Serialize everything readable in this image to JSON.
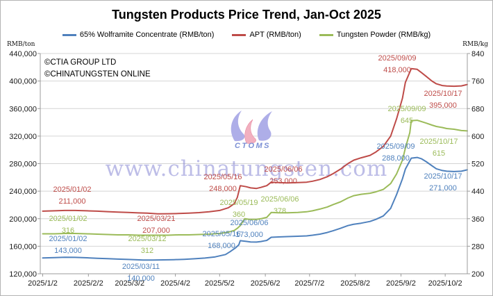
{
  "branding": {
    "copyright_line1": "©CTIA GROUP LTD",
    "copyright_line2": "©CHINATUNGSTEN ONLINE",
    "watermark_text": "www.chinatungsten.com",
    "logo_caption": "CTOMS",
    "watermark_color": "#7d7dd0",
    "logo_lavender": "#aeaee8",
    "logo_pink": "#f2b0c0"
  },
  "legend": [
    {
      "label": "65% Wolframite Concentrate (RMB/ton)",
      "color": "#4F81BD"
    },
    {
      "label": "APT (RMB/ton)",
      "color": "#BE4B48"
    },
    {
      "label": "Tungsten Powder (RMB/kg)",
      "color": "#9BBB59"
    }
  ],
  "chart_data": {
    "type": "line",
    "title": "Tungsten Products Price Trend, Jan-Oct 2025",
    "grid": true,
    "legend_position": "top",
    "x_axis": {
      "year": 2025,
      "start": "1/2",
      "end": "10/17",
      "tick_labels": [
        "2025/1/2",
        "2025/2/2",
        "2025/3/2",
        "2025/4/2",
        "2025/5/2",
        "2025/6/2",
        "2025/7/2",
        "2025/8/2",
        "2025/9/2",
        "2025/10/2"
      ]
    },
    "y_left": {
      "label": "RMB/ton",
      "min": 120000,
      "max": 440000,
      "step": 40000,
      "tick_labels": [
        "440,000",
        "400,000",
        "360,000",
        "320,000",
        "280,000",
        "240,000",
        "200,000",
        "160,000",
        "120,000"
      ]
    },
    "y_right": {
      "label": "RMB/kg",
      "min": 200,
      "max": 840,
      "step": 80,
      "tick_labels": [
        "840",
        "760",
        "680",
        "600",
        "520",
        "440",
        "360",
        "280",
        "200"
      ]
    },
    "series": [
      {
        "name": "65% Wolframite Concentrate (RMB/ton)",
        "color": "#4F81BD",
        "axis": "left",
        "points": [
          [
            "1/2",
            143000
          ],
          [
            "1/10",
            143500
          ],
          [
            "1/17",
            144000
          ],
          [
            "1/24",
            143800
          ],
          [
            "2/1",
            143200
          ],
          [
            "2/8",
            142500
          ],
          [
            "2/15",
            142000
          ],
          [
            "2/22",
            141300
          ],
          [
            "3/1",
            140800
          ],
          [
            "3/7",
            140300
          ],
          [
            "3/11",
            140000
          ],
          [
            "3/18",
            140000
          ],
          [
            "3/25",
            140200
          ],
          [
            "4/1",
            140500
          ],
          [
            "4/8",
            141000
          ],
          [
            "4/15",
            141800
          ],
          [
            "4/22",
            142800
          ],
          [
            "4/29",
            144500
          ],
          [
            "5/6",
            148000
          ],
          [
            "5/9",
            152000
          ],
          [
            "5/13",
            158000
          ],
          [
            "5/15",
            162000
          ],
          [
            "5/16",
            168000
          ],
          [
            "5/20",
            167000
          ],
          [
            "5/23",
            166200
          ],
          [
            "5/27",
            166000
          ],
          [
            "5/30",
            166800
          ],
          [
            "6/3",
            168500
          ],
          [
            "6/6",
            173000
          ],
          [
            "6/11",
            173500
          ],
          [
            "6/17",
            174000
          ],
          [
            "6/24",
            174500
          ],
          [
            "6/30",
            175000
          ],
          [
            "7/4",
            176000
          ],
          [
            "7/9",
            177500
          ],
          [
            "7/14",
            180000
          ],
          [
            "7/18",
            182500
          ],
          [
            "7/23",
            186000
          ],
          [
            "7/28",
            190000
          ],
          [
            "8/1",
            192000
          ],
          [
            "8/6",
            193500
          ],
          [
            "8/12",
            196000
          ],
          [
            "8/16",
            199000
          ],
          [
            "8/21",
            204000
          ],
          [
            "8/26",
            215000
          ],
          [
            "8/30",
            235000
          ],
          [
            "9/3",
            258000
          ],
          [
            "9/5",
            272000
          ],
          [
            "9/9",
            288000
          ],
          [
            "9/13",
            289000
          ],
          [
            "9/16",
            287000
          ],
          [
            "9/19",
            283000
          ],
          [
            "9/23",
            277000
          ],
          [
            "9/26",
            272500
          ],
          [
            "9/30",
            270000
          ],
          [
            "10/3",
            269000
          ],
          [
            "10/8",
            268500
          ],
          [
            "10/13",
            269000
          ],
          [
            "10/17",
            271000
          ]
        ]
      },
      {
        "name": "APT (RMB/ton)",
        "color": "#BE4B48",
        "axis": "left",
        "points": [
          [
            "1/2",
            211000
          ],
          [
            "1/10",
            211500
          ],
          [
            "1/17",
            212000
          ],
          [
            "1/24",
            212000
          ],
          [
            "2/1",
            211500
          ],
          [
            "2/8",
            211000
          ],
          [
            "2/15",
            210200
          ],
          [
            "2/22",
            209600
          ],
          [
            "3/1",
            209000
          ],
          [
            "3/8",
            208400
          ],
          [
            "3/14",
            208000
          ],
          [
            "3/21",
            207000
          ],
          [
            "3/28",
            207200
          ],
          [
            "4/4",
            207500
          ],
          [
            "4/11",
            208000
          ],
          [
            "4/18",
            208800
          ],
          [
            "4/25",
            210000
          ],
          [
            "5/2",
            212000
          ],
          [
            "5/8",
            216000
          ],
          [
            "5/12",
            222000
          ],
          [
            "5/14",
            231000
          ],
          [
            "5/16",
            248000
          ],
          [
            "5/20",
            246500
          ],
          [
            "5/23",
            244800
          ],
          [
            "5/27",
            244000
          ],
          [
            "5/30",
            245500
          ],
          [
            "6/3",
            248000
          ],
          [
            "6/6",
            253000
          ],
          [
            "6/11",
            252500
          ],
          [
            "6/17",
            252000
          ],
          [
            "6/24",
            252500
          ],
          [
            "6/30",
            253000
          ],
          [
            "7/4",
            254500
          ],
          [
            "7/9",
            257000
          ],
          [
            "7/14",
            261000
          ],
          [
            "7/18",
            265500
          ],
          [
            "7/23",
            272000
          ],
          [
            "7/28",
            280000
          ],
          [
            "8/1",
            285000
          ],
          [
            "8/6",
            288500
          ],
          [
            "8/12",
            292000
          ],
          [
            "8/16",
            297000
          ],
          [
            "8/21",
            305000
          ],
          [
            "8/26",
            320000
          ],
          [
            "8/30",
            345000
          ],
          [
            "9/3",
            375000
          ],
          [
            "9/5",
            398000
          ],
          [
            "9/9",
            418000
          ],
          [
            "9/13",
            417000
          ],
          [
            "9/16",
            412000
          ],
          [
            "9/19",
            407000
          ],
          [
            "9/23",
            400000
          ],
          [
            "9/26",
            396000
          ],
          [
            "9/30",
            393500
          ],
          [
            "10/3",
            392800
          ],
          [
            "10/8",
            392500
          ],
          [
            "10/13",
            393000
          ],
          [
            "10/17",
            395000
          ]
        ]
      },
      {
        "name": "Tungsten Powder (RMB/kg)",
        "color": "#9BBB59",
        "axis": "right",
        "points": [
          [
            "1/2",
            316
          ],
          [
            "1/10",
            316
          ],
          [
            "1/17",
            317
          ],
          [
            "1/24",
            317
          ],
          [
            "2/1",
            316
          ],
          [
            "2/8",
            315
          ],
          [
            "2/15",
            314
          ],
          [
            "2/22",
            313
          ],
          [
            "3/1",
            313
          ],
          [
            "3/8",
            312
          ],
          [
            "3/12",
            312
          ],
          [
            "3/21",
            312
          ],
          [
            "3/28",
            312
          ],
          [
            "4/4",
            313
          ],
          [
            "4/11",
            313
          ],
          [
            "4/18",
            314
          ],
          [
            "4/25",
            315
          ],
          [
            "5/2",
            317
          ],
          [
            "5/8",
            321
          ],
          [
            "5/12",
            326
          ],
          [
            "5/14",
            332
          ],
          [
            "5/16",
            340
          ],
          [
            "5/19",
            360
          ],
          [
            "5/22",
            358
          ],
          [
            "5/27",
            358
          ],
          [
            "5/30",
            360
          ],
          [
            "6/3",
            364
          ],
          [
            "6/6",
            378
          ],
          [
            "6/11",
            377
          ],
          [
            "6/17",
            377
          ],
          [
            "6/24",
            378
          ],
          [
            "6/30",
            380
          ],
          [
            "7/4",
            383
          ],
          [
            "7/9",
            388
          ],
          [
            "7/14",
            394
          ],
          [
            "7/18",
            401
          ],
          [
            "7/23",
            409
          ],
          [
            "7/28",
            420
          ],
          [
            "8/1",
            427
          ],
          [
            "8/6",
            431
          ],
          [
            "8/12",
            434
          ],
          [
            "8/16",
            438
          ],
          [
            "8/21",
            445
          ],
          [
            "8/26",
            462
          ],
          [
            "8/30",
            490
          ],
          [
            "9/3",
            530
          ],
          [
            "9/5",
            565
          ],
          [
            "9/8",
            610
          ],
          [
            "9/9",
            645
          ],
          [
            "9/13",
            646
          ],
          [
            "9/16",
            642
          ],
          [
            "9/19",
            638
          ],
          [
            "9/23",
            632
          ],
          [
            "9/26",
            628
          ],
          [
            "9/30",
            625
          ],
          [
            "10/3",
            622
          ],
          [
            "10/8",
            620
          ],
          [
            "10/13",
            616
          ],
          [
            "10/17",
            615
          ]
        ]
      }
    ],
    "annotations": [
      {
        "series": 0,
        "date_label": "2025/01/02",
        "value_label": "143,000"
      },
      {
        "series": 0,
        "date_label": "2025/03/11",
        "value_label": "140,000"
      },
      {
        "series": 0,
        "date_label": "2025/05/16",
        "value_label": "168,000"
      },
      {
        "series": 0,
        "date_label": "2025/06/06",
        "value_label": "173,000"
      },
      {
        "series": 0,
        "date_label": "2025/09/09",
        "value_label": "288,000"
      },
      {
        "series": 0,
        "date_label": "2025/10/17",
        "value_label": "271,000"
      },
      {
        "series": 1,
        "date_label": "2025/01/02",
        "value_label": "211,000"
      },
      {
        "series": 1,
        "date_label": "2025/03/21",
        "value_label": "207,000"
      },
      {
        "series": 1,
        "date_label": "2025/05/16",
        "value_label": "248,000"
      },
      {
        "series": 1,
        "date_label": "2025/06/06",
        "value_label": "253,000"
      },
      {
        "series": 1,
        "date_label": "2025/09/09",
        "value_label": "418,000"
      },
      {
        "series": 1,
        "date_label": "2025/10/17",
        "value_label": "395,000"
      },
      {
        "series": 2,
        "date_label": "2025/01/02",
        "value_label": "316"
      },
      {
        "series": 2,
        "date_label": "2025/03/12",
        "value_label": "312"
      },
      {
        "series": 2,
        "date_label": "2025/05/19",
        "value_label": "360"
      },
      {
        "series": 2,
        "date_label": "2025/06/06",
        "value_label": "378"
      },
      {
        "series": 2,
        "date_label": "2025/09/09",
        "value_label": "645"
      },
      {
        "series": 2,
        "date_label": "2025/10/17",
        "value_label": "615"
      }
    ]
  }
}
